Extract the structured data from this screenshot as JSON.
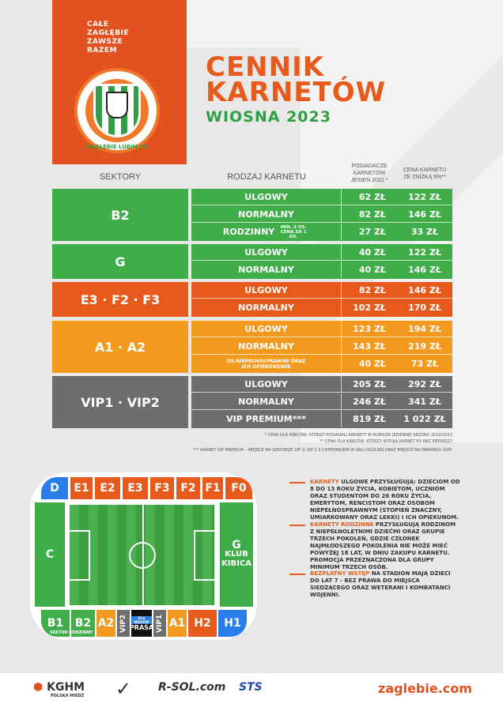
{
  "slogan": [
    "CAŁE",
    "ZAGŁĘBIE",
    "ZAWSZE",
    "RAZEM"
  ],
  "crest_text": "ZAGŁĘBIE LUBIN SA",
  "title": {
    "line1": "CENNIK",
    "line2": "KARNETÓW",
    "line3": "WIOSNA 2023"
  },
  "headers": {
    "sectors": "SEKTORY",
    "type": "RODZAJ KARNETU",
    "holders": [
      "POSIADACZE",
      "KARNETÓW",
      "JESIEŃ 2022 *"
    ],
    "discount": [
      "CENA KARNETU",
      "ZE ZNIŻKĄ 5%**"
    ]
  },
  "colors": {
    "green": "#3fae49",
    "orange_red": "#e85a1c",
    "orange": "#f39a1e",
    "gray": "#6d6d6d"
  },
  "groups": [
    {
      "sector": "B2",
      "color": "green",
      "rows": [
        {
          "name": "ULGOWY",
          "p1": "62 ZŁ",
          "p2": "122 ZŁ"
        },
        {
          "name": "NORMALNY",
          "p1": "82 ZŁ",
          "p2": "146 ZŁ"
        },
        {
          "name": "RODZINNY",
          "sub": "MIN. 3 OS. CENA ZA 1 OS.",
          "p1": "27 ZŁ",
          "p2": "33 ZŁ"
        }
      ]
    },
    {
      "sector": "G",
      "color": "green",
      "rows": [
        {
          "name": "ULGOWY",
          "p1": "40 ZŁ",
          "p2": "122 ZŁ"
        },
        {
          "name": "NORMALNY",
          "p1": "40 ZŁ",
          "p2": "146 ZŁ"
        }
      ]
    },
    {
      "sector": "E3 · F2 · F3",
      "color": "orange_red",
      "rows": [
        {
          "name": "ULGOWY",
          "p1": "82 ZŁ",
          "p2": "146 ZŁ"
        },
        {
          "name": "NORMALNY",
          "p1": "102 ZŁ",
          "p2": "170 ZŁ"
        }
      ]
    },
    {
      "sector": "A1 · A2",
      "color": "orange",
      "rows": [
        {
          "name": "ULGOWY",
          "p1": "123 ZŁ",
          "p2": "194 ZŁ"
        },
        {
          "name": "NORMALNY",
          "p1": "143 ZŁ",
          "p2": "219 ZŁ"
        },
        {
          "name": "OS.NIEPEŁNOSPRAWNE ORAZ ICH OPIEKUNOWIE",
          "p1": "40 ZŁ",
          "p2": "73 ZŁ"
        }
      ]
    },
    {
      "sector": "VIP1 · VIP2",
      "color": "gray",
      "rows": [
        {
          "name": "ULGOWY",
          "p1": "205 ZŁ",
          "p2": "292 ZŁ"
        },
        {
          "name": "NORMALNY",
          "p1": "246 ZŁ",
          "p2": "341 ZŁ"
        },
        {
          "name": "VIP PREMIUM***",
          "p1": "819 ZŁ",
          "p2": "1 022 ZŁ"
        }
      ]
    }
  ],
  "notes": [
    "* CENA DLA KIBICÓW, KTÓRZY POSIADALI KARNETY W RUNDZIE JESIENNEJ SEZONU 2022/2023",
    "** CENA DLA KIBICÓW, KTÓRZY KUPUJĄ KARNET PO RAZ PIERWSZY",
    "*** KARNET VIP PREMIUM – MIEJSCE NA SEKTORZE VIP 1/ VIP 2 Z CATERINGIEM W SALI OGÓLNEJ ORAZ MIEJSCE NA PARKINGU SVIP."
  ],
  "stadium": {
    "top": [
      "D",
      "E1",
      "E2",
      "E3",
      "F3",
      "F2",
      "F1",
      "F0"
    ],
    "left": "C",
    "right": [
      "G",
      "KLUB",
      "KIBICA"
    ],
    "bottom": [
      "B1",
      "B2",
      "A2",
      "VIP2",
      "PRASA",
      "VIP1",
      "A1",
      "H2",
      "H1"
    ],
    "family": "SEKTOR RODZINNY",
    "press_tag": "DLA MEDIÓW"
  },
  "legend": [
    {
      "key": "KARNETY",
      "text": "ULGOWE PRZYSŁUGUJĄ: DZIECIOM OD 8 DO 13 ROKU ŻYCIA, KOBIETOM, UCZNIOM ORAZ STUDENTOM DO 26 ROKU ŻYCIA, EMERYTOM, RENCISTOM ORAZ OSOBOM NIEPEŁNOSPRAWNYM (STOPIEŃ ZNACZNY, UMIARKOWANY ORAZ LEKKI) I ICH OPIEKUNOM."
    },
    {
      "key": "KARNETY RODZINNE",
      "text": "PRZYSŁUGUJĄ RODZINOM Z NIEPEŁNOLETNIMI DZIEĆMI ORAZ GRUPIE TRZECH POKOLEŃ, GDZIE CZŁONEK NAJMŁODSZEGO POKOLENIA NIE MOŻE MIEĆ POWYŻEJ 18 LAT, W DNIU ZAKUPU KARNETU. PROMOCJA PRZEZNACZONA DLA GRUPY MINIMUM TRZECH OSÓB."
    },
    {
      "key": "BEZPŁATNY WSTĘP",
      "text": "NA STADION MAJĄ DZIECI DO LAT 7 - BEZ PRAWA DO MIEJSCA SIEDZĄCEGO ORAZ WETERANI I KOMBATANCI WOJENNI."
    }
  ],
  "sponsors": {
    "kghm": "KGHM",
    "kghm_sub": "POLSKA MIEDŹ",
    "nike": "✓",
    "rsol": "R-SOL.com",
    "sts": "STS",
    "site": "zaglebie.com"
  }
}
